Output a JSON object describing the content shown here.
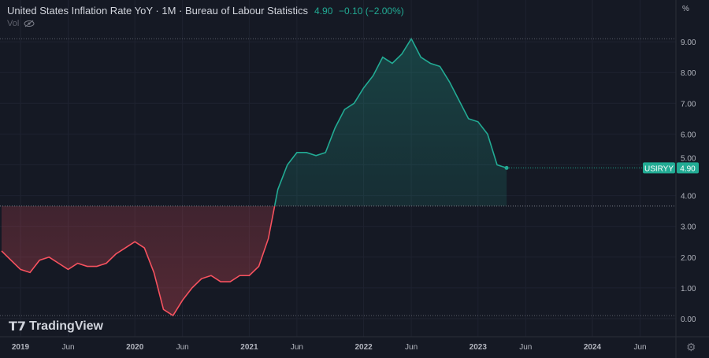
{
  "header": {
    "title": "United States Inflation Rate YoY · 1M · Bureau of Labour Statistics",
    "value": "4.90",
    "change": "−0.10 (−2.00%)",
    "vol_label": "Vol",
    "unit": "%"
  },
  "logo": "TradingView",
  "colors": {
    "up": "#22ab94",
    "down": "#f7525f",
    "bg": "#151924"
  },
  "chart_data": {
    "type": "area",
    "title": "United States Inflation Rate YoY",
    "ylabel": "%",
    "ylim": [
      0,
      9.3
    ],
    "baseline": 3.66,
    "symbol": "USIRYY",
    "last_value": "4.90",
    "y_ticks": [
      "0.00",
      "1.00",
      "2.00",
      "3.00",
      "4.00",
      "5.00",
      "6.00",
      "7.00",
      "8.00",
      "9.00"
    ],
    "x_ticks": [
      {
        "label": "2019",
        "m": 0
      },
      {
        "label": "Jun",
        "m": 5
      },
      {
        "label": "2020",
        "m": 12
      },
      {
        "label": "Jun",
        "m": 17
      },
      {
        "label": "2021",
        "m": 24
      },
      {
        "label": "Jun",
        "m": 29
      },
      {
        "label": "2022",
        "m": 36
      },
      {
        "label": "Jun",
        "m": 41
      },
      {
        "label": "2023",
        "m": 48
      },
      {
        "label": "Jun",
        "m": 53
      },
      {
        "label": "2024",
        "m": 60
      },
      {
        "label": "Jun",
        "m": 65
      }
    ],
    "start_month_offset": -2,
    "values": [
      2.2,
      1.9,
      1.6,
      1.5,
      1.9,
      2.0,
      1.8,
      1.6,
      1.8,
      1.7,
      1.7,
      1.8,
      2.1,
      2.3,
      2.5,
      2.3,
      1.5,
      0.3,
      0.1,
      0.6,
      1.0,
      1.3,
      1.4,
      1.2,
      1.2,
      1.4,
      1.4,
      1.7,
      2.6,
      4.2,
      5.0,
      5.4,
      5.4,
      5.3,
      5.4,
      6.2,
      6.8,
      7.0,
      7.5,
      7.9,
      8.5,
      8.3,
      8.6,
      9.1,
      8.5,
      8.3,
      8.2,
      7.7,
      7.1,
      6.5,
      6.4,
      6.0,
      5.0,
      4.9
    ]
  }
}
